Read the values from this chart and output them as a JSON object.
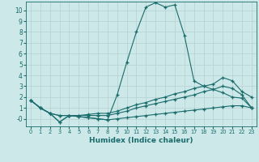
{
  "xlabel": "Humidex (Indice chaleur)",
  "bg_color": "#cce8e8",
  "grid_color": "#b8d4d4",
  "line_color": "#1a6b6b",
  "xlim": [
    -0.5,
    23.5
  ],
  "ylim": [
    -0.7,
    10.8
  ],
  "yticks": [
    0,
    1,
    2,
    3,
    4,
    5,
    6,
    7,
    8,
    9,
    10
  ],
  "ytick_labels": [
    "0",
    "1",
    "2",
    "3",
    "4",
    "5",
    "6",
    "7",
    "8",
    "9",
    "10"
  ],
  "xticks": [
    0,
    1,
    2,
    3,
    4,
    5,
    6,
    7,
    8,
    9,
    10,
    11,
    12,
    13,
    14,
    15,
    16,
    17,
    18,
    19,
    20,
    21,
    22,
    23
  ],
  "series": [
    {
      "x": [
        0,
        1,
        2,
        3,
        4,
        5,
        6,
        7,
        8,
        9,
        10,
        11,
        12,
        13,
        14,
        15,
        16,
        17,
        18,
        19,
        20,
        21,
        22,
        23
      ],
      "y": [
        1.7,
        1.0,
        0.5,
        -0.3,
        0.3,
        0.2,
        0.1,
        0.0,
        -0.1,
        2.2,
        5.2,
        8.0,
        10.3,
        10.7,
        10.3,
        10.5,
        7.7,
        3.5,
        3.0,
        2.7,
        2.4,
        2.0,
        1.9,
        1.0
      ]
    },
    {
      "x": [
        0,
        1,
        2,
        3,
        4,
        5,
        6,
        7,
        8,
        9,
        10,
        11,
        12,
        13,
        14,
        15,
        16,
        17,
        18,
        19,
        20,
        21,
        22,
        23
      ],
      "y": [
        1.7,
        1.0,
        0.5,
        0.3,
        0.3,
        0.3,
        0.4,
        0.5,
        0.5,
        0.7,
        1.0,
        1.3,
        1.5,
        1.8,
        2.0,
        2.3,
        2.5,
        2.8,
        3.0,
        3.2,
        3.8,
        3.5,
        2.5,
        2.0
      ]
    },
    {
      "x": [
        0,
        1,
        2,
        3,
        4,
        5,
        6,
        7,
        8,
        9,
        10,
        11,
        12,
        13,
        14,
        15,
        16,
        17,
        18,
        19,
        20,
        21,
        22,
        23
      ],
      "y": [
        1.7,
        1.0,
        0.5,
        0.3,
        0.3,
        0.3,
        0.3,
        0.3,
        0.3,
        0.5,
        0.7,
        1.0,
        1.2,
        1.4,
        1.6,
        1.8,
        2.0,
        2.2,
        2.5,
        2.7,
        3.0,
        2.8,
        2.2,
        1.0
      ]
    },
    {
      "x": [
        0,
        1,
        2,
        3,
        4,
        5,
        6,
        7,
        8,
        9,
        10,
        11,
        12,
        13,
        14,
        15,
        16,
        17,
        18,
        19,
        20,
        21,
        22,
        23
      ],
      "y": [
        1.7,
        1.0,
        0.5,
        -0.3,
        0.3,
        0.2,
        0.1,
        0.0,
        -0.1,
        0.0,
        0.1,
        0.2,
        0.3,
        0.4,
        0.5,
        0.6,
        0.7,
        0.8,
        0.9,
        1.0,
        1.1,
        1.2,
        1.2,
        1.0
      ]
    }
  ]
}
